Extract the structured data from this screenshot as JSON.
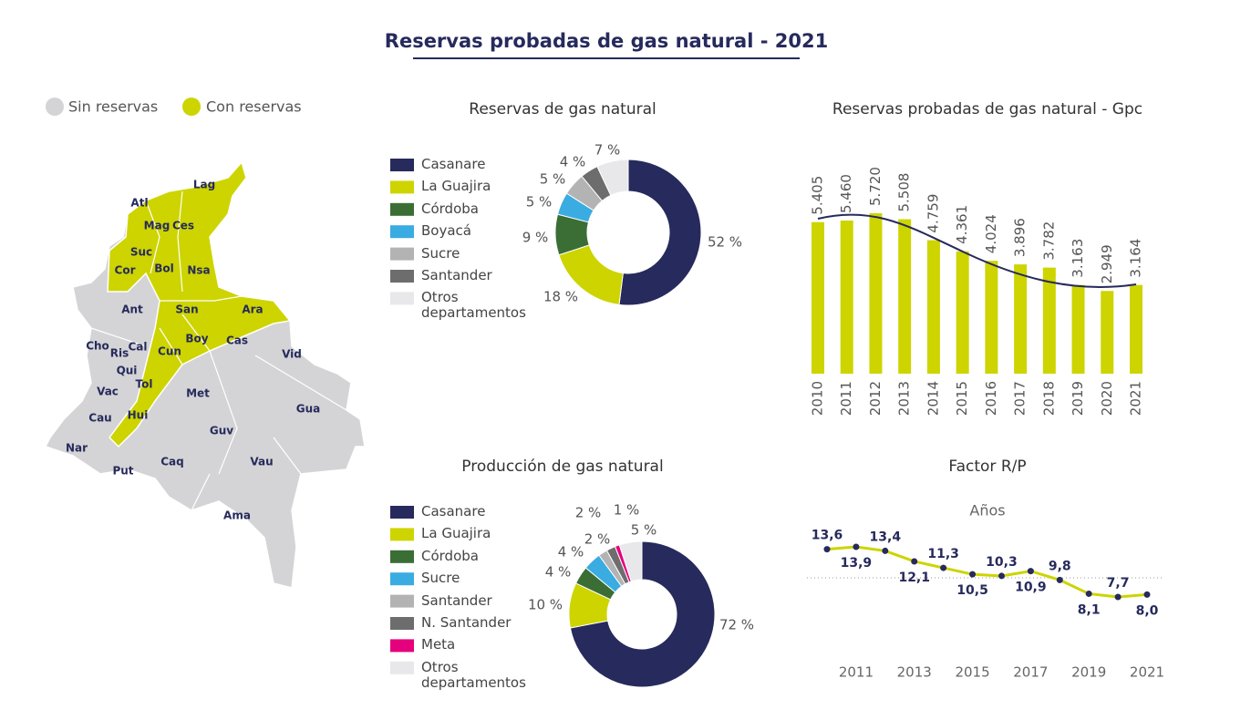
{
  "title": "Reservas probadas de gas natural - 2021",
  "map": {
    "legend": [
      "Sin reservas",
      "Con reservas"
    ],
    "labels": [
      "Lag",
      "Atl",
      "Mag",
      "Ces",
      "Suc",
      "Cor",
      "Bol",
      "Nsa",
      "Ant",
      "San",
      "Ara",
      "Cho",
      "Ris",
      "Cal",
      "Cun",
      "Boy",
      "Cas",
      "Vid",
      "Qui",
      "Vac",
      "Tol",
      "Met",
      "Gua",
      "Cau",
      "Hui",
      "Guv",
      "Nar",
      "Put",
      "Caq",
      "Vau",
      "Ama"
    ]
  },
  "chart_data": [
    {
      "type": "pie",
      "title": "Reservas de gas natural",
      "categories": [
        "Casanare",
        "La Guajira",
        "Córdoba",
        "Boyacá",
        "Sucre",
        "Santander",
        "Otros departamentos"
      ],
      "values": [
        52,
        18,
        9,
        5,
        5,
        4,
        7
      ],
      "value_labels": [
        "52 %",
        "18 %",
        "9 %",
        "5 %",
        "5 %",
        "4 %",
        "7 %"
      ],
      "colors": [
        "#262a5c",
        "#cdd400",
        "#3a6e35",
        "#3aace2",
        "#b3b3b3",
        "#6d6d6d",
        "#e8e8ea"
      ]
    },
    {
      "type": "pie",
      "title": "Producción de gas natural",
      "categories": [
        "Casanare",
        "La Guajira",
        "Córdoba",
        "Sucre",
        "Santander",
        "N. Santander",
        "Meta",
        "Otros departamentos"
      ],
      "values": [
        72,
        10,
        4,
        4,
        2,
        2,
        1,
        5
      ],
      "value_labels": [
        "72 %",
        "10 %",
        "4 %",
        "4 %",
        "2 %",
        "2 %",
        "1 %",
        "5 %"
      ],
      "colors": [
        "#262a5c",
        "#cdd400",
        "#3a6e35",
        "#3aace2",
        "#b3b3b3",
        "#6d6d6d",
        "#e5007e",
        "#e8e8ea"
      ]
    },
    {
      "type": "bar",
      "title": "Reservas probadas de gas natural - Gpc",
      "categories": [
        "2010",
        "2011",
        "2012",
        "2013",
        "2014",
        "2015",
        "2016",
        "2017",
        "2018",
        "2019",
        "2020",
        "2021"
      ],
      "values": [
        5405,
        5460,
        5720,
        5508,
        4759,
        4361,
        4024,
        3896,
        3782,
        3163,
        2949,
        3164
      ],
      "value_labels": [
        "5.405",
        "5.460",
        "5.720",
        "5.508",
        "4.759",
        "4.361",
        "4.024",
        "3.896",
        "3.782",
        "3.163",
        "2.949",
        "3.164"
      ],
      "color": "#cdd400"
    },
    {
      "type": "line",
      "title": "Factor R/P",
      "subtitle": "Años",
      "x": [
        2010,
        2011,
        2012,
        2013,
        2014,
        2015,
        2016,
        2017,
        2018,
        2019,
        2020,
        2021
      ],
      "values": [
        13.6,
        13.9,
        13.4,
        12.1,
        11.3,
        10.5,
        10.3,
        10.9,
        9.8,
        8.1,
        7.7,
        8.0
      ],
      "value_labels": [
        "13,6",
        "13,9",
        "13,4",
        "12,1",
        "11,3",
        "10,5",
        "10,3",
        "10,9",
        "9,8",
        "8,1",
        "7,7",
        "8,0"
      ],
      "color": "#cdd400",
      "marker_color": "#262a5c",
      "xlim": [
        2010,
        2021
      ],
      "xticks": [
        2011,
        2013,
        2015,
        2017,
        2019,
        2021
      ]
    }
  ]
}
